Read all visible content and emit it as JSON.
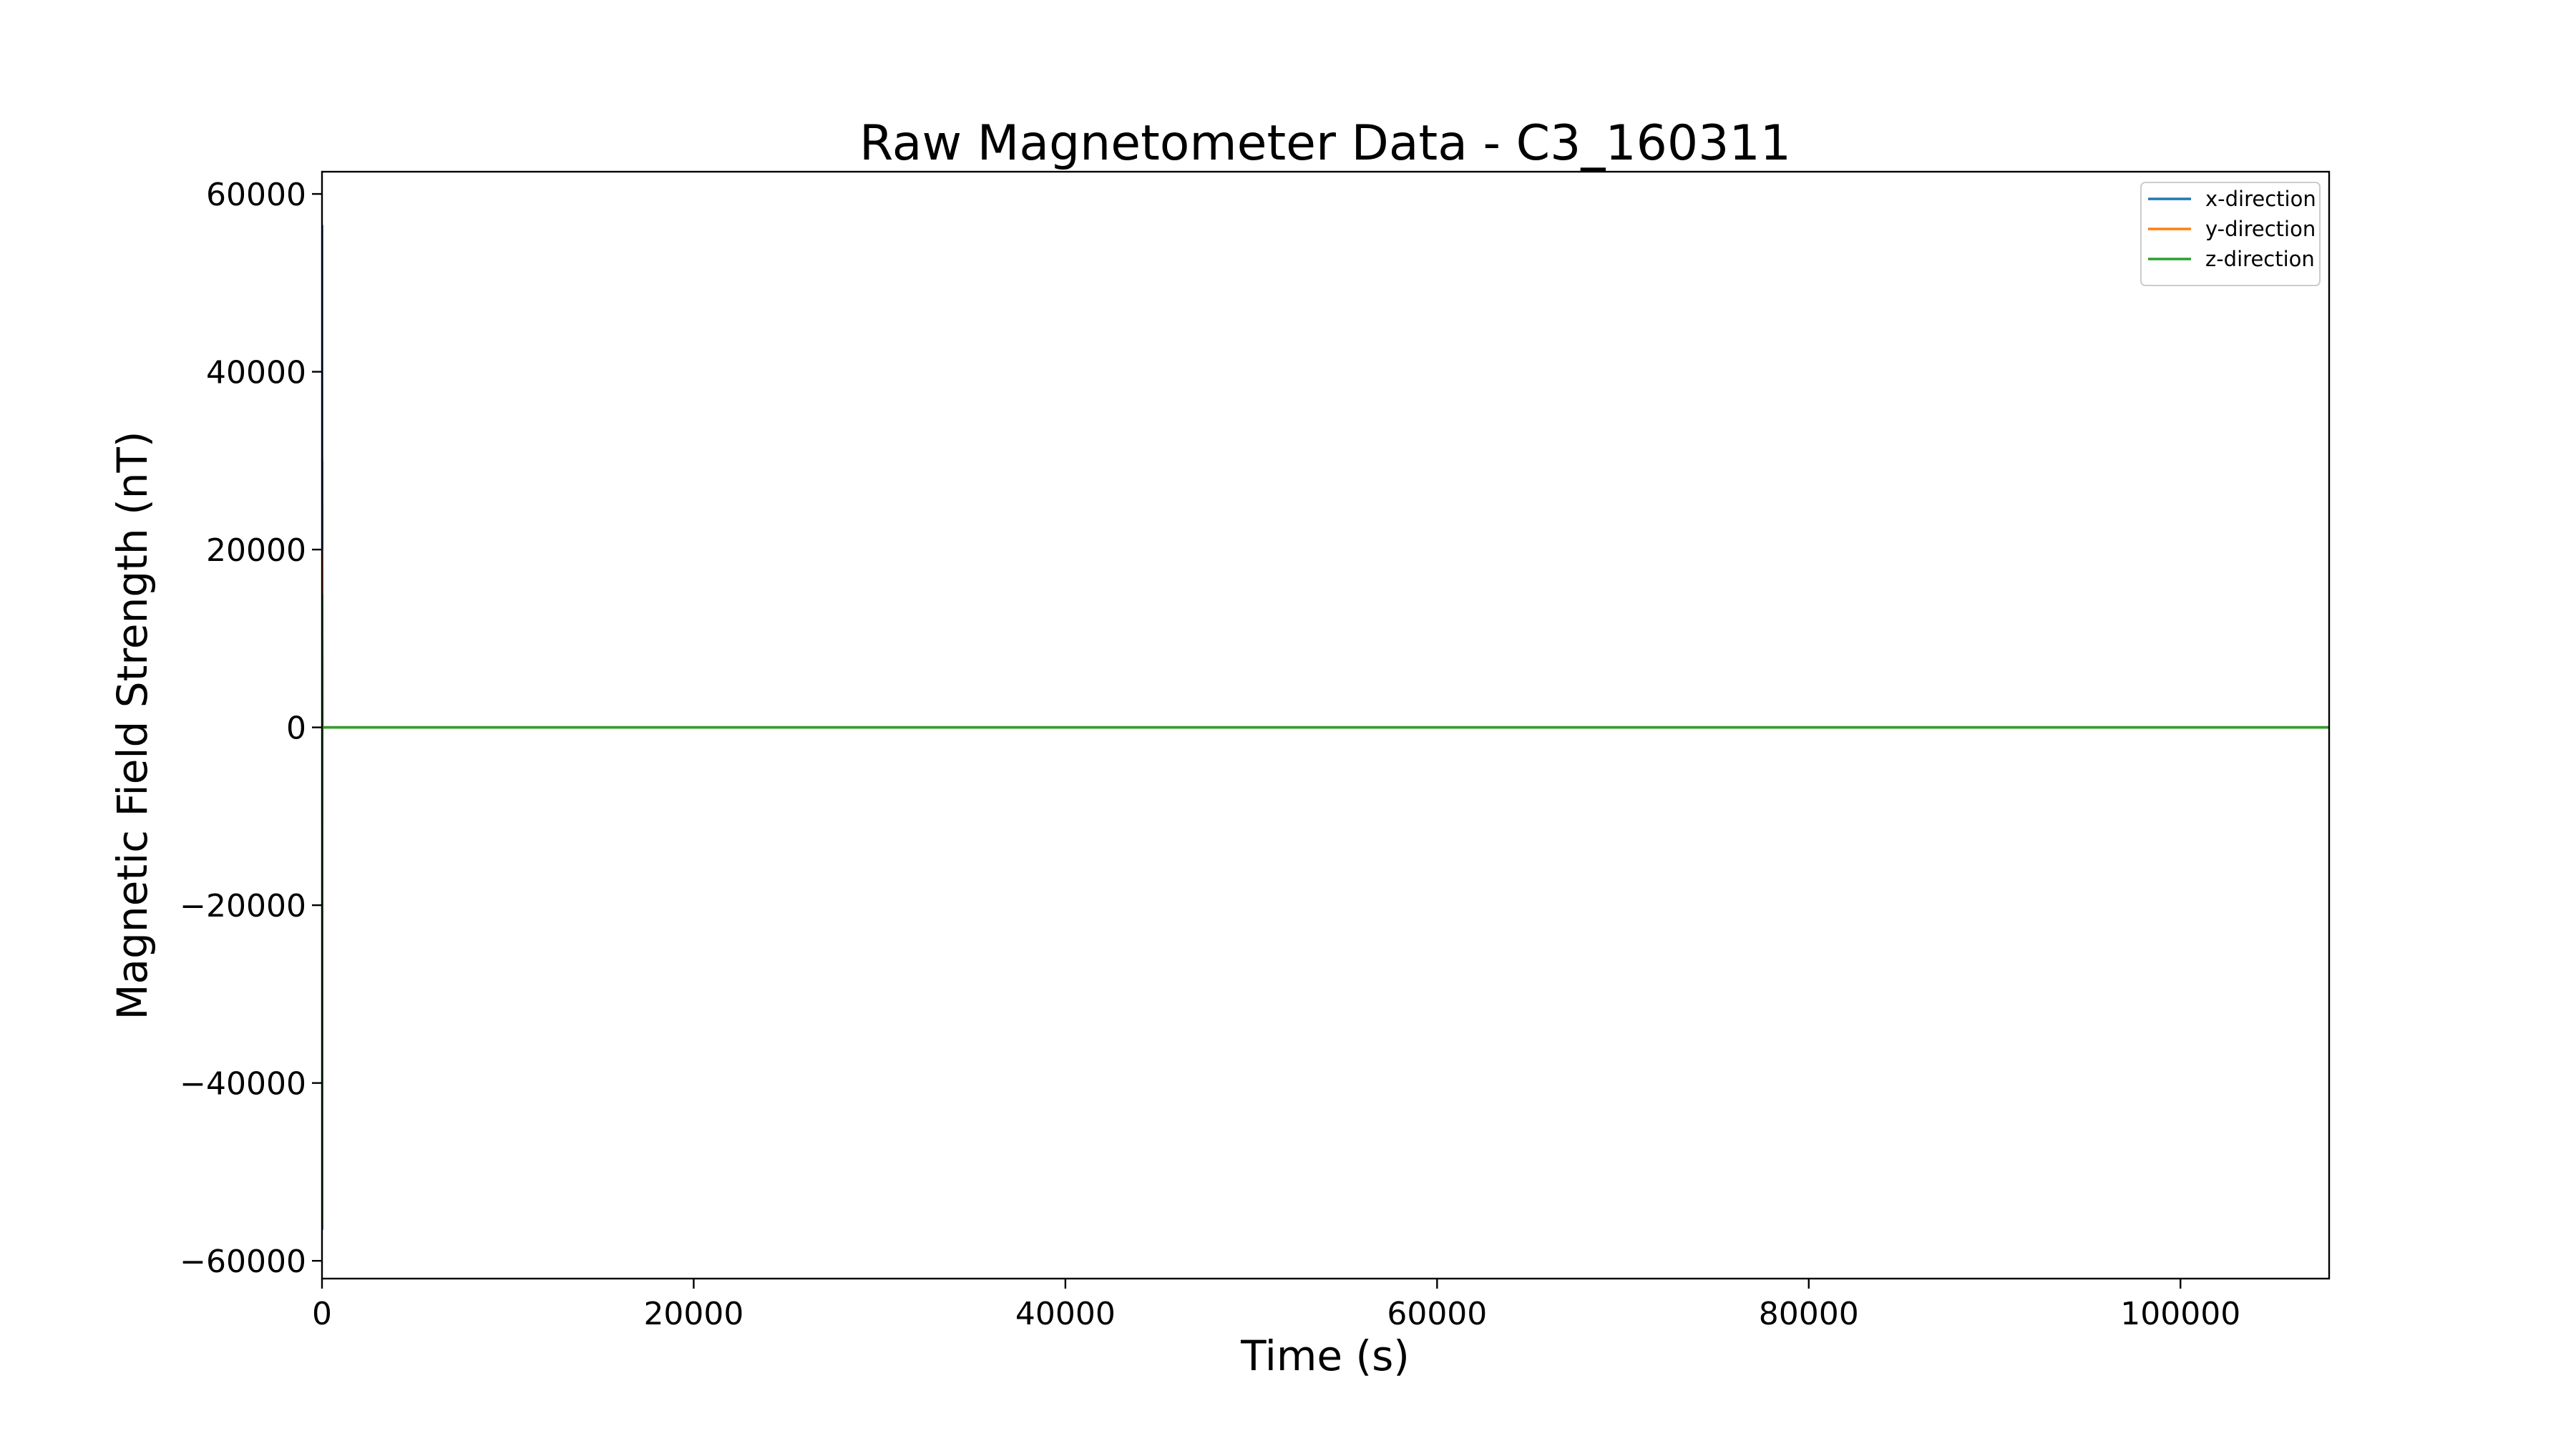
{
  "chart_data": {
    "type": "line",
    "title": "Raw Magnetometer Data - C3_160311",
    "xlabel": "Time (s)",
    "ylabel": "Magnetic Field Strength (nT)",
    "xlim": [
      0,
      108000
    ],
    "ylim": [
      -62000,
      62500
    ],
    "xticks": [
      0,
      20000,
      40000,
      60000,
      80000,
      100000
    ],
    "xtick_labels": [
      "0",
      "20000",
      "40000",
      "60000",
      "80000",
      "100000"
    ],
    "yticks": [
      -60000,
      -40000,
      -20000,
      0,
      20000,
      40000,
      60000
    ],
    "ytick_labels": [
      "−60000",
      "−40000",
      "−20000",
      "0",
      "20000",
      "40000",
      "60000"
    ],
    "grid": false,
    "legend": "top-right",
    "series": [
      {
        "name": "x-direction",
        "color": "#1f77b4",
        "x": [
          0,
          5,
          10,
          15,
          20,
          108000
        ],
        "y": [
          0,
          56500,
          -56500,
          30000,
          0,
          0
        ]
      },
      {
        "name": "y-direction",
        "color": "#ff7f0e",
        "x": [
          0,
          5,
          10,
          15,
          20,
          108000
        ],
        "y": [
          0,
          20000,
          -20000,
          8000,
          0,
          0
        ]
      },
      {
        "name": "z-direction",
        "color": "#2ca02c",
        "x": [
          0,
          5,
          10,
          15,
          20,
          108000
        ],
        "y": [
          0,
          15000,
          -56000,
          10000,
          0,
          0
        ]
      }
    ]
  }
}
